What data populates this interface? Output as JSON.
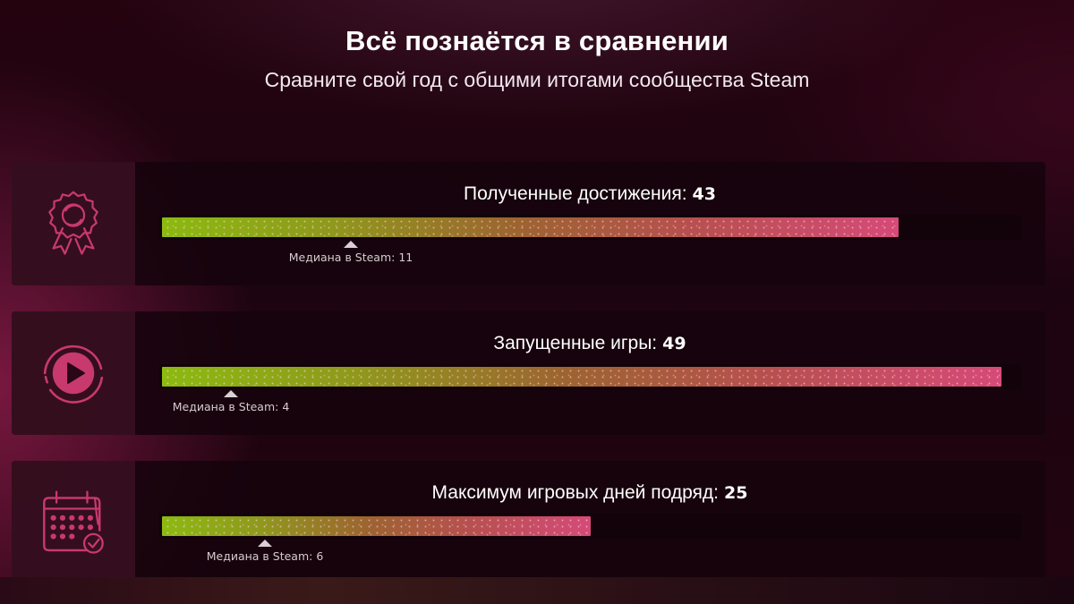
{
  "header": {
    "title": "Всё познаётся в сравнении",
    "subtitle": "Сравните свой год с общими итогами сообщества Steam"
  },
  "colors": {
    "accent_pink": "#c8396d",
    "bar_start": "#8cba10",
    "bar_end": "#d64a78",
    "card_bg": "#16030c",
    "icon_box_bg": "#370f20"
  },
  "scale_max": 50,
  "stats": [
    {
      "icon": "award-ribbon-icon",
      "label": "Полученные достижения:",
      "value": "43",
      "value_number": 43,
      "median_label": "Медиана в Steam: 11",
      "median_number": 11
    },
    {
      "icon": "play-circle-icon",
      "label": "Запущенные игры:",
      "value": "49",
      "value_number": 49,
      "median_label": "Медиана в Steam: 4",
      "median_number": 4
    },
    {
      "icon": "calendar-check-icon",
      "label": "Максимум игровых дней подряд:",
      "value": "25",
      "value_number": 25,
      "median_label": "Медиана в Steam: 6",
      "median_number": 6
    }
  ]
}
